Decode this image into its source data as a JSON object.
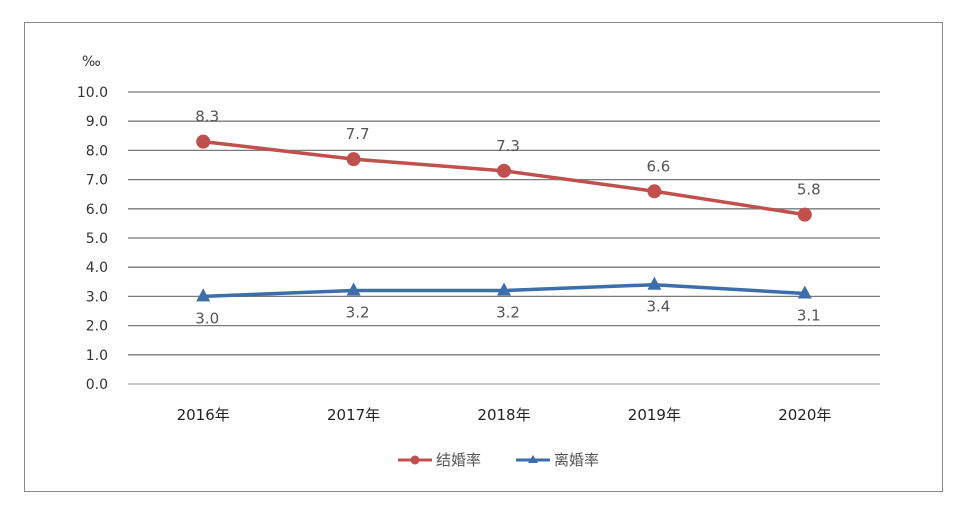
{
  "chart_data": {
    "type": "line",
    "unit_label": "‰",
    "categories": [
      "2016年",
      "2017年",
      "2018年",
      "2019年",
      "2020年"
    ],
    "ylim": [
      0,
      10
    ],
    "yticks": [
      "0.0",
      "1.0",
      "2.0",
      "3.0",
      "4.0",
      "5.0",
      "6.0",
      "7.0",
      "8.0",
      "9.0",
      "10.0"
    ],
    "grid": true,
    "legend_position": "bottom",
    "series": [
      {
        "name": "结婚率",
        "values": [
          8.3,
          7.7,
          7.3,
          6.6,
          5.8
        ],
        "labels": [
          "8.3",
          "7.7",
          "7.3",
          "6.6",
          "5.8"
        ],
        "color": "#c0504d",
        "marker": "circle",
        "label_position": "above"
      },
      {
        "name": "离婚率",
        "values": [
          3.0,
          3.2,
          3.2,
          3.4,
          3.1
        ],
        "labels": [
          "3.0",
          "3.2",
          "3.2",
          "3.4",
          "3.1"
        ],
        "color": "#3b6eaa",
        "marker": "triangle",
        "label_position": "below"
      }
    ]
  }
}
